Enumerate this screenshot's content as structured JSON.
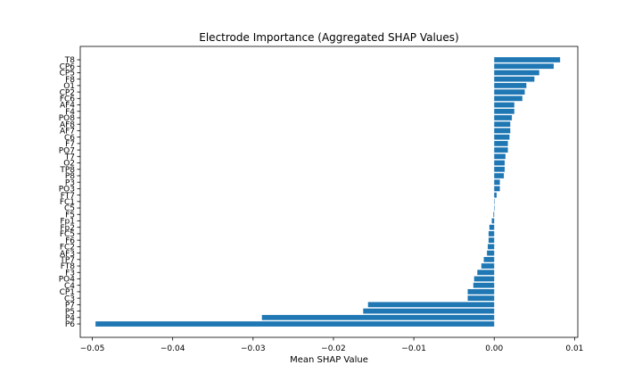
{
  "chart_data": {
    "type": "bar",
    "orientation": "horizontal",
    "title": "Electrode Importance (Aggregated SHAP Values)",
    "xlabel": "Mean SHAP Value",
    "ylabel": "",
    "xlim": [
      -0.0515,
      0.0104
    ],
    "xticks": [
      -0.05,
      -0.04,
      -0.03,
      -0.02,
      -0.01,
      0.0,
      0.01
    ],
    "xtick_labels": [
      "−0.05",
      "−0.04",
      "−0.03",
      "−0.02",
      "−0.01",
      "0.00",
      "0.01"
    ],
    "categories": [
      "T8",
      "CP6",
      "CP5",
      "F8",
      "O1",
      "CP2",
      "FC6",
      "AF4",
      "F4",
      "PO8",
      "AF8",
      "AF7",
      "C6",
      "F7",
      "PO7",
      "T7",
      "O2",
      "TP8",
      "P8",
      "P3",
      "PO3",
      "FT7",
      "FC1",
      "C5",
      "F5",
      "Fp1",
      "Fp2",
      "FC5",
      "F6",
      "FC2",
      "AF3",
      "TP7",
      "FT8",
      "F3",
      "PO4",
      "C4",
      "CP1",
      "C3",
      "P7",
      "P5",
      "P4",
      "P6"
    ],
    "values": [
      0.0082,
      0.0074,
      0.0056,
      0.005,
      0.004,
      0.0038,
      0.0035,
      0.0025,
      0.0025,
      0.0022,
      0.002,
      0.002,
      0.0019,
      0.0017,
      0.0017,
      0.0014,
      0.0013,
      0.0013,
      0.0012,
      0.0007,
      0.0007,
      0.0003,
      0.0,
      0.0,
      -0.0001,
      -0.0003,
      -0.0006,
      -0.0007,
      -0.0007,
      -0.0008,
      -0.0009,
      -0.0013,
      -0.0016,
      -0.0021,
      -0.0025,
      -0.0026,
      -0.0033,
      -0.0033,
      -0.0157,
      -0.0163,
      -0.0289,
      -0.0496
    ],
    "color": "#1f77b4",
    "grid": false
  }
}
